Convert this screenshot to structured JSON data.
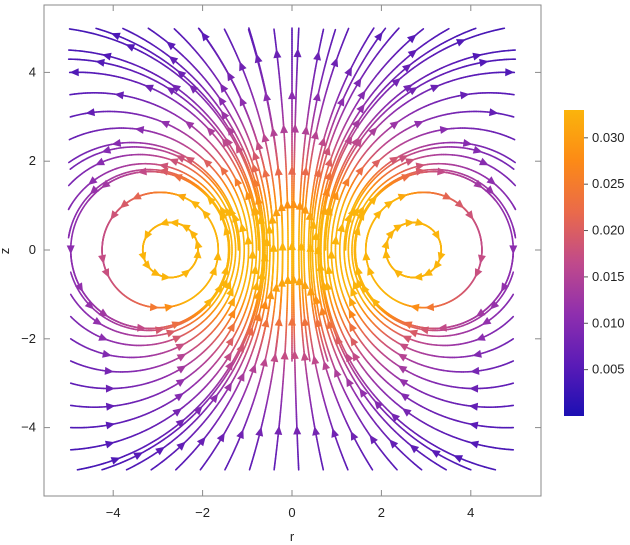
{
  "chart_data": {
    "type": "streamplot",
    "title": "",
    "xlabel": "r",
    "ylabel": "z",
    "xlim": [
      -5.5,
      5.5
    ],
    "ylim": [
      -5.5,
      5.5
    ],
    "x_ticks": [
      -4,
      -2,
      0,
      2,
      4
    ],
    "y_ticks": [
      -4,
      -2,
      0,
      2,
      4
    ],
    "x_tick_labels": [
      "−4",
      "−2",
      "0",
      "2",
      "4"
    ],
    "y_tick_labels": [
      "−4",
      "−2",
      "0",
      "2",
      "4"
    ],
    "grid": false,
    "field": {
      "description_values": "Vortex ring velocity field: upward jet along r=0, circulating vortices centred near (r,z) = (±2.6, 0)",
      "vortex_centers": [
        [
          -2.6,
          0.0
        ],
        [
          2.6,
          0.0
        ]
      ],
      "max_speed_at": [
        0.0,
        0.5
      ],
      "domain": [
        -5,
        5,
        -5,
        5
      ]
    },
    "colorbar": {
      "min": 0.0,
      "max": 0.033,
      "ticks": [
        0.005,
        0.01,
        0.015,
        0.02,
        0.025,
        0.03
      ],
      "tick_labels": [
        "0.005",
        "0.010",
        "0.015",
        "0.020",
        "0.025",
        "0.030"
      ],
      "colors": [
        "#1c0fb3",
        "#5a1bb7",
        "#8f2fae",
        "#c04a8b",
        "#ea6a4a",
        "#fc8a16",
        "#fbb40b"
      ]
    }
  }
}
